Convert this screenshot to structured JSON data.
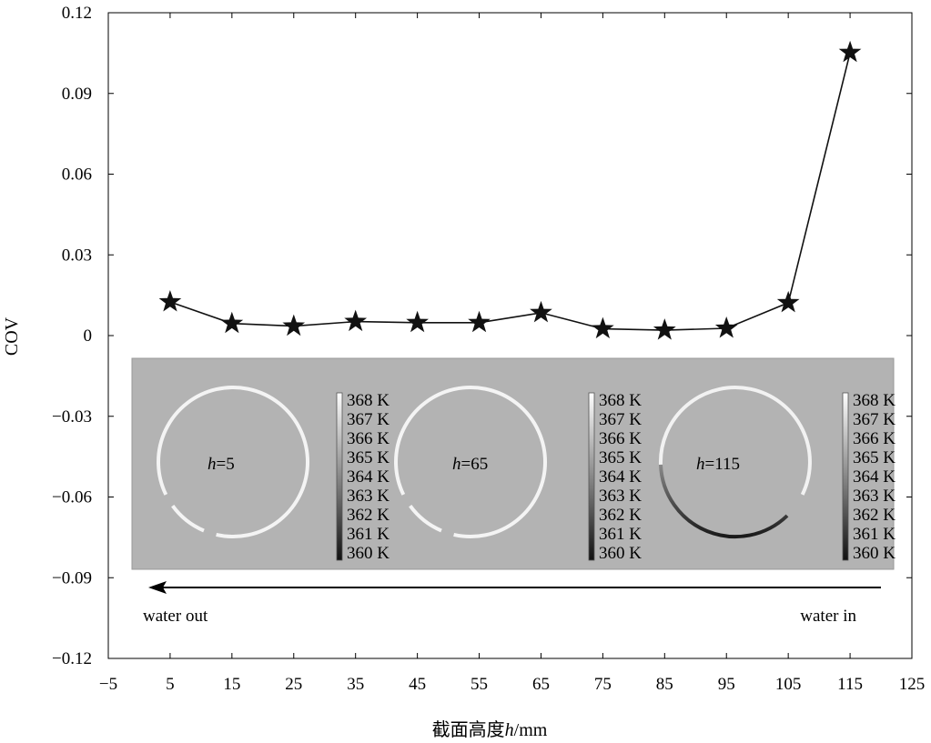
{
  "chart_data": {
    "type": "line",
    "xlabel_prefix": "截面高度",
    "xlabel_var": "h",
    "xlabel_suffix": "/mm",
    "ylabel": "COV",
    "xlim": [
      -5,
      125
    ],
    "ylim": [
      -0.12,
      0.12
    ],
    "x_ticks": [
      "−5",
      "5",
      "15",
      "25",
      "35",
      "45",
      "55",
      "65",
      "75",
      "85",
      "95",
      "105",
      "115",
      "125"
    ],
    "x_tick_values": [
      -5,
      5,
      15,
      25,
      35,
      45,
      55,
      65,
      75,
      85,
      95,
      105,
      115,
      125
    ],
    "y_ticks": [
      "0.12",
      "0.09",
      "0.06",
      "0.03",
      "0",
      "−0.03",
      "−0.06",
      "−0.09",
      "−0.12"
    ],
    "y_tick_values": [
      0.12,
      0.09,
      0.06,
      0.03,
      0,
      -0.03,
      -0.06,
      -0.09,
      -0.12
    ],
    "grid": false,
    "series": [
      {
        "marker": "star",
        "color": "#111111",
        "x": [
          5,
          15,
          25,
          35,
          45,
          55,
          65,
          75,
          85,
          95,
          105,
          115
        ],
        "y": [
          0.0125,
          0.0045,
          0.0035,
          0.0052,
          0.0048,
          0.0048,
          0.0085,
          0.0025,
          0.002,
          0.0027,
          0.0122,
          0.1052
        ]
      }
    ],
    "inset": {
      "background": "#b3b3b3",
      "panels": [
        {
          "label_var": "h",
          "label_value": "=5"
        },
        {
          "label_var": "h",
          "label_value": "=65"
        },
        {
          "label_var": "h",
          "label_value": "=115"
        }
      ],
      "colorbar_labels": [
        "368 K",
        "367 K",
        "366 K",
        "365 K",
        "364 K",
        "363 K",
        "362 K",
        "361 K",
        "360 K"
      ]
    },
    "annotations": {
      "arrow_left_label": "water out",
      "arrow_right_label": "water in"
    }
  }
}
